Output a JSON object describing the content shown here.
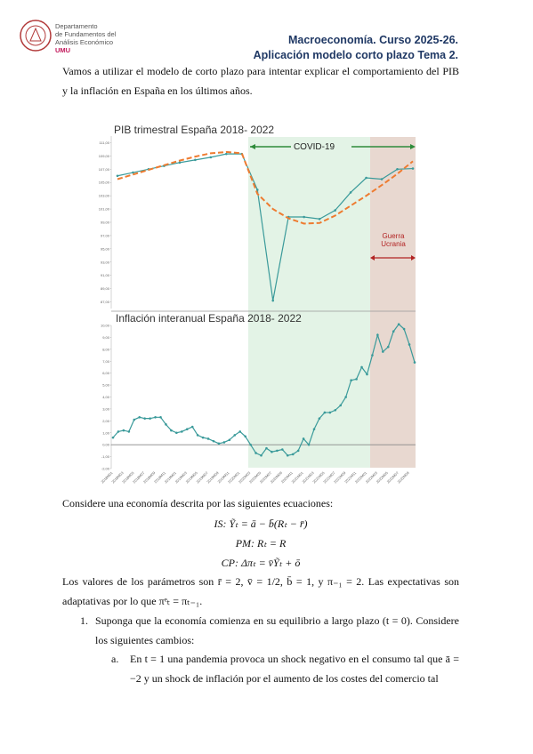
{
  "header": {
    "dept": [
      "Departamento",
      "de Fundamentos del",
      "Análisis Económico"
    ],
    "university": "UMU",
    "course": "Macroeconomía. Curso 2025-26.",
    "topic": "Aplicación modelo corto plazo Tema 2."
  },
  "intro": "Vamos a utilizar el modelo de corto plazo para intentar explicar el comportamiento del PIB y la inflación en España en los últimos años.",
  "chart_data": [
    {
      "type": "line",
      "title": "PIB trimestral España 2018- 2022",
      "annotations": [
        "COVID-19",
        "Guerra Ucrania"
      ],
      "series": [
        {
          "color": "#3a9a9a",
          "values": [
            106.0,
            106.5,
            107.0,
            107.5,
            108.0,
            108.4,
            108.8,
            109.3,
            109.3,
            103.9,
            87.2,
            99.8,
            99.8,
            99.5,
            100.8,
            103.5,
            105.7,
            105.5,
            107.0,
            107.1
          ]
        },
        {
          "color": "#ee7b30",
          "dashed": true,
          "values": [
            105.5,
            106.2,
            106.9,
            107.6,
            108.3,
            108.9,
            109.4,
            109.6,
            109.4,
            103.3,
            101.0,
            99.6,
            98.8,
            98.9,
            100.0,
            101.5,
            103.0,
            104.6,
            106.3,
            108.2
          ]
        }
      ],
      "ylim": [
        86,
        112
      ],
      "yticks": [
        {
          "value": 87,
          "label": "87,00"
        },
        {
          "value": 89,
          "label": "89,00"
        },
        {
          "value": 91,
          "label": "91,00"
        },
        {
          "value": 93,
          "label": "93,00"
        },
        {
          "value": 95,
          "label": "95,00"
        },
        {
          "value": 97,
          "label": "97,00"
        },
        {
          "value": 99,
          "label": "99,00"
        },
        {
          "value": 101,
          "label": "101,00"
        },
        {
          "value": 103,
          "label": "103,00"
        },
        {
          "value": 105,
          "label": "105,00"
        },
        {
          "value": 107,
          "label": "107,00"
        },
        {
          "value": 109,
          "label": "109,00"
        },
        {
          "value": 111,
          "label": "111,00"
        }
      ]
    },
    {
      "type": "line",
      "title": "Inflación interanual España 2018- 2022",
      "categories": [
        "2018M01",
        null,
        "2018M03",
        null,
        "2018M05",
        null,
        "2018M07",
        null,
        "2018M09",
        null,
        "2018M11",
        null,
        "2019M01",
        null,
        "2019M03",
        null,
        "2019M05",
        null,
        "2019M07",
        null,
        "2019M09",
        null,
        "2019M11",
        null,
        "2020M01",
        null,
        "2020M03",
        null,
        "2020M05",
        null,
        "2020M07",
        null,
        "2020M09",
        null,
        "2020M11",
        null,
        "2021M01",
        null,
        "2021M03",
        null,
        "2021M05",
        null,
        "2021M07",
        null,
        "2021M09",
        null,
        "2021M11",
        null,
        "2022M01",
        null,
        "2022M03",
        null,
        "2022M05",
        null,
        "2022M07",
        null,
        "2022M09",
        null
      ],
      "series": [
        {
          "color": "#3a9a9a",
          "values": [
            0.6,
            1.1,
            1.2,
            1.1,
            2.1,
            2.3,
            2.2,
            2.2,
            2.3,
            2.3,
            1.7,
            1.2,
            1.0,
            1.1,
            1.3,
            1.5,
            0.8,
            0.6,
            0.5,
            0.3,
            0.1,
            0.2,
            0.4,
            0.8,
            1.1,
            0.7,
            0.0,
            -0.7,
            -0.9,
            -0.3,
            -0.6,
            -0.5,
            -0.4,
            -0.9,
            -0.8,
            -0.5,
            0.5,
            0.0,
            1.3,
            2.2,
            2.7,
            2.7,
            2.9,
            3.3,
            4.0,
            5.4,
            5.5,
            6.5,
            5.9,
            7.5,
            9.2,
            7.8,
            8.2,
            9.5,
            10.1,
            9.7,
            8.4,
            6.9
          ]
        }
      ],
      "ylim": [
        -2,
        10
      ],
      "yticks": [
        {
          "value": -2,
          "label": "-2,00"
        },
        {
          "value": -1,
          "label": "-1,00"
        },
        {
          "value": 0,
          "label": "0,00"
        },
        {
          "value": 1,
          "label": "1,00"
        },
        {
          "value": 2,
          "label": "2,00"
        },
        {
          "value": 3,
          "label": "3,00"
        },
        {
          "value": 4,
          "label": "4,00"
        },
        {
          "value": 5,
          "label": "5,00"
        },
        {
          "value": 6,
          "label": "6,00"
        },
        {
          "value": 7,
          "label": "7,00"
        },
        {
          "value": 8,
          "label": "8,00"
        },
        {
          "value": 9,
          "label": "9,00"
        },
        {
          "value": 10,
          "label": "10,00"
        }
      ]
    }
  ],
  "setup": "Considere una economía descrita por las siguientes ecuaciones:",
  "equations": [
    "IS: Ỹₜ = ā − b̄(Rₜ − r̄)",
    "PM: Rₜ = R",
    "CP: Δπₜ = v̄Ỹₜ + ō"
  ],
  "parameters": "Los valores de los parámetros son r̄ = 2, v̄ = 1/2, b̄ = 1, y π₋₁ = 2. Las expectativas son adaptativas por lo que πᵉₜ = πₜ₋₁.",
  "questions": [
    {
      "number": "1.",
      "text": "Suponga que la economía comienza en su equilibrio a largo plazo (t = 0). Considere los siguientes cambios:",
      "items": [
        {
          "letter": "a.",
          "text": "En t = 1 una pandemia provoca un shock negativo en el consumo tal que ā = −2 y un shock de inflación por el aumento de los costes del comercio tal"
        }
      ]
    }
  ]
}
